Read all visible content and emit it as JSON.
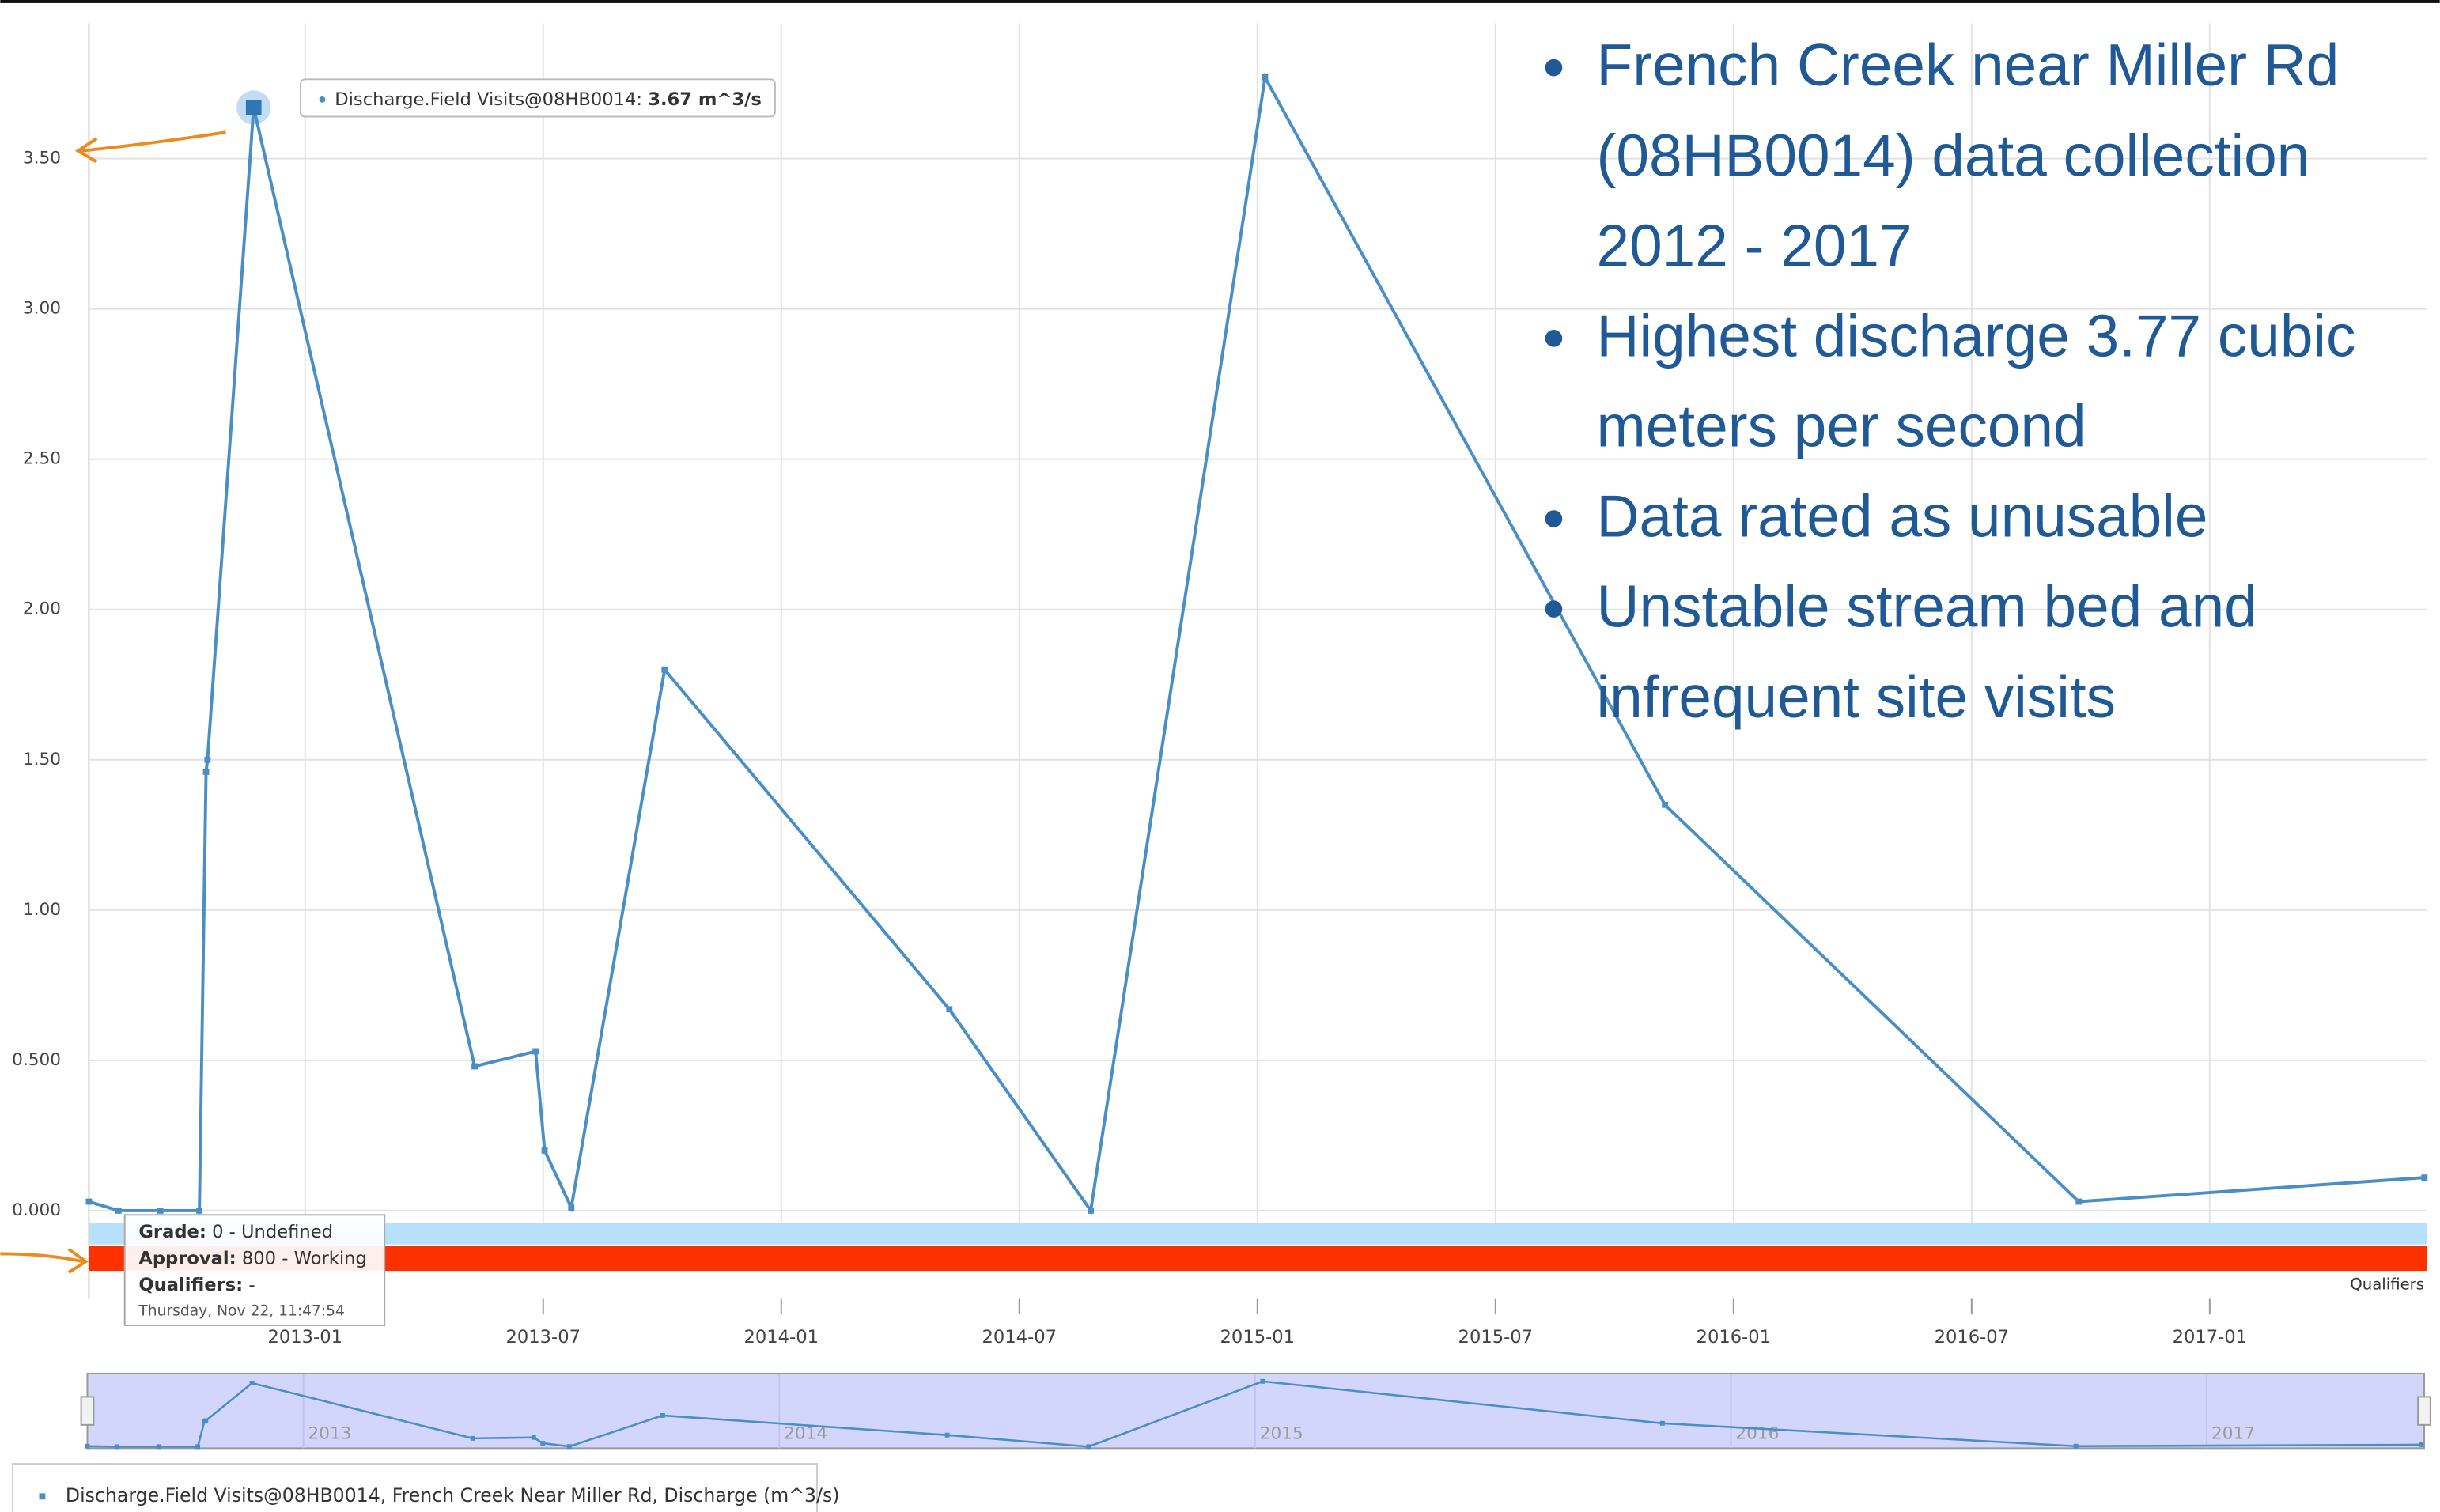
{
  "chart_data": {
    "type": "line",
    "x": [
      2012.546,
      2012.608,
      2012.696,
      2012.778,
      2012.792,
      2012.795,
      2012.892,
      2013.356,
      2013.484,
      2013.503,
      2013.559,
      2013.755,
      2014.353,
      2014.65,
      2015.016,
      2015.856,
      2016.725,
      2017.451
    ],
    "series": [
      {
        "name": "Discharge.Field Visits@08HB0014, French Creek Near Miller Rd, Discharge (m^3/s)",
        "color": "#4a8ec6",
        "values": [
          0.03,
          0,
          0,
          0,
          1.46,
          1.5,
          3.67,
          0.48,
          0.53,
          0.2,
          0.01,
          1.8,
          0.67,
          0,
          3.77,
          1.35,
          0.03,
          0.11
        ]
      }
    ],
    "xlim": [
      2012.546,
      2017.457
    ],
    "xticks": [
      {
        "value": 2013.0,
        "label": "2013-01"
      },
      {
        "value": 2013.5,
        "label": "2013-07"
      },
      {
        "value": 2014.0,
        "label": "2014-01"
      },
      {
        "value": 2014.5,
        "label": "2014-07"
      },
      {
        "value": 2015.0,
        "label": "2015-01"
      },
      {
        "value": 2015.5,
        "label": "2015-07"
      },
      {
        "value": 2016.0,
        "label": "2016-01"
      },
      {
        "value": 2016.5,
        "label": "2016-07"
      },
      {
        "value": 2017.0,
        "label": "2017-01"
      }
    ],
    "ylim": [
      -0.04,
      3.95
    ],
    "yticks": [
      {
        "value": 0,
        "label": "0.000"
      },
      {
        "value": 0.5,
        "label": "0.500"
      },
      {
        "value": 1.0,
        "label": "1.00"
      },
      {
        "value": 1.5,
        "label": "1.50"
      },
      {
        "value": 2.0,
        "label": "2.00"
      },
      {
        "value": 2.5,
        "label": "2.50"
      },
      {
        "value": 3.0,
        "label": "3.00"
      },
      {
        "value": 3.5,
        "label": "3.50"
      }
    ],
    "grid": true,
    "tooltip": {
      "series_label": "Discharge.Field Visits@08HB0014:",
      "value_label": "3.67 m^3/s"
    },
    "bands": [
      "Grade",
      "Approval",
      "Qualifiers"
    ],
    "point_info": [
      {
        "key": "Grade:",
        "text": "0 - Undefined"
      },
      {
        "key": "Approval:",
        "text": "800 - Working"
      },
      {
        "key": "Qualifiers:",
        "text": "-"
      }
    ],
    "point_time": "Thursday, Nov 22, 11:47:54",
    "navigator_labels": [
      {
        "value": 2013.0,
        "label": "2013"
      },
      {
        "value": 2014.0,
        "label": "2014"
      },
      {
        "value": 2015.0,
        "label": "2015"
      },
      {
        "value": 2016.0,
        "label": "2016"
      },
      {
        "value": 2017.0,
        "label": "2017"
      }
    ],
    "annotations": [
      "French Creek near Miller Rd (08HB0014) data collection 2012 - 2017",
      "Highest discharge 3.77 cubic meters per second",
      "Data rated as unusable",
      "Unstable stream bed and infrequent site visits"
    ]
  }
}
